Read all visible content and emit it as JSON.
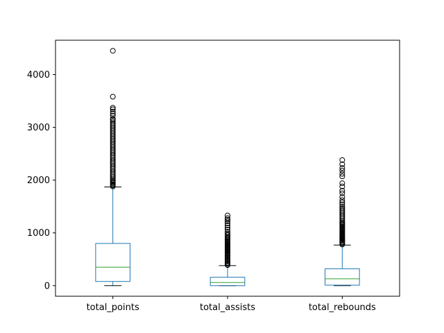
{
  "chart_data": {
    "type": "box",
    "title": "",
    "xlabel": "",
    "ylabel": "",
    "ylim": [
      -200,
      4650
    ],
    "y_ticks": [
      0,
      1000,
      2000,
      3000,
      4000
    ],
    "y_tick_labels": [
      "0",
      "1000",
      "2000",
      "3000",
      "4000"
    ],
    "grid": false,
    "legend": "none",
    "colors": {
      "box": "#1f77b4",
      "median": "#2ca02c",
      "whisker": "#1f77b4",
      "cap": "#000000",
      "flier": "#000000"
    },
    "categories": [
      "total_points",
      "total_assists",
      "total_rebounds"
    ],
    "boxes": [
      {
        "name": "total_points",
        "whisker_low": 0,
        "q1": 80,
        "median": 350,
        "q3": 800,
        "whisker_high": 1870,
        "fliers": [
          1880,
          1900,
          1920,
          1940,
          1960,
          1980,
          2000,
          2030,
          2060,
          2090,
          2120,
          2150,
          2180,
          2210,
          2240,
          2270,
          2300,
          2330,
          2360,
          2390,
          2420,
          2450,
          2480,
          2510,
          2540,
          2570,
          2600,
          2630,
          2660,
          2690,
          2720,
          2750,
          2780,
          2810,
          2840,
          2870,
          2900,
          2930,
          2960,
          2990,
          3020,
          3050,
          3080,
          3110,
          3140,
          3160,
          3220,
          3260,
          3300,
          3340,
          3370,
          3580,
          4450
        ]
      },
      {
        "name": "total_assists",
        "whisker_low": 0,
        "q1": 0,
        "median": 60,
        "q3": 160,
        "whisker_high": 380,
        "fliers": [
          390,
          410,
          430,
          450,
          470,
          490,
          510,
          530,
          550,
          570,
          590,
          610,
          630,
          650,
          670,
          690,
          710,
          730,
          750,
          770,
          790,
          810,
          830,
          850,
          870,
          890,
          910,
          930,
          960,
          990,
          1020,
          1060,
          1100,
          1140,
          1180,
          1220,
          1250,
          1280,
          1330
        ]
      },
      {
        "name": "total_rebounds",
        "whisker_low": 0,
        "q1": 10,
        "median": 130,
        "q3": 320,
        "whisker_high": 770,
        "fliers": [
          780,
          800,
          820,
          840,
          860,
          880,
          900,
          920,
          940,
          960,
          980,
          1000,
          1020,
          1040,
          1060,
          1080,
          1100,
          1120,
          1140,
          1160,
          1180,
          1200,
          1230,
          1260,
          1290,
          1320,
          1350,
          1380,
          1410,
          1440,
          1470,
          1500,
          1540,
          1580,
          1620,
          1680,
          1750,
          1800,
          1880,
          1940,
          2070,
          2120,
          2180,
          2230,
          2300,
          2380
        ]
      }
    ]
  }
}
